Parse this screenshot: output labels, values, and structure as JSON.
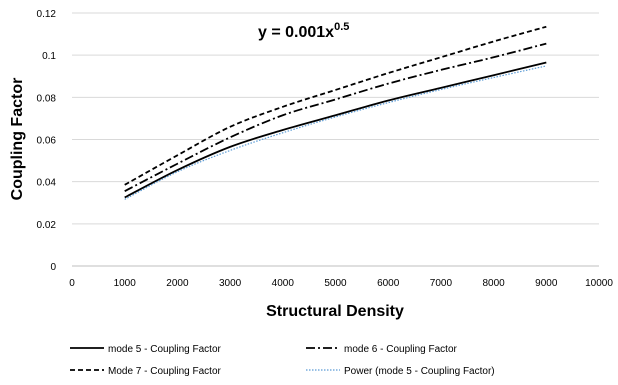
{
  "chart_data": {
    "type": "line",
    "title": "",
    "annotation": {
      "base": "y = 0.001x",
      "exponent": "0.5"
    },
    "xlabel": "Structural Density",
    "ylabel": "Coupling Factor",
    "xlim": [
      0,
      10000
    ],
    "ylim": [
      0,
      0.12
    ],
    "xticks": [
      0,
      1000,
      2000,
      3000,
      4000,
      5000,
      6000,
      7000,
      8000,
      9000,
      10000
    ],
    "yticks": [
      0,
      0.02,
      0.04,
      0.06,
      0.08,
      0.1,
      0.12
    ],
    "grid": "horizontal",
    "legend_position": "bottom",
    "x": [
      1000,
      2000,
      3000,
      4000,
      5000,
      6000,
      7000,
      8000,
      9000
    ],
    "series": [
      {
        "name": "mode 5 - Coupling Factor",
        "style": "solid",
        "color": "#000000",
        "values": [
          0.0325,
          0.0455,
          0.0565,
          0.0645,
          0.0715,
          0.0785,
          0.0845,
          0.0905,
          0.0965
        ]
      },
      {
        "name": "mode 6 - Coupling Factor",
        "style": "dashdot",
        "color": "#000000",
        "values": [
          0.0355,
          0.0485,
          0.061,
          0.0715,
          0.079,
          0.0865,
          0.093,
          0.099,
          0.1055
        ]
      },
      {
        "name": "Mode 7 - Coupling Factor",
        "style": "dashed",
        "color": "#000000",
        "values": [
          0.0385,
          0.0525,
          0.066,
          0.0755,
          0.0835,
          0.0915,
          0.099,
          0.1065,
          0.1135
        ]
      },
      {
        "name": "Power (mode 5 - Coupling Factor)",
        "style": "dotted",
        "color": "#5b9bd5",
        "values": [
          0.0316,
          0.0447,
          0.0548,
          0.0632,
          0.0707,
          0.0775,
          0.0837,
          0.0894,
          0.0949
        ]
      }
    ]
  }
}
